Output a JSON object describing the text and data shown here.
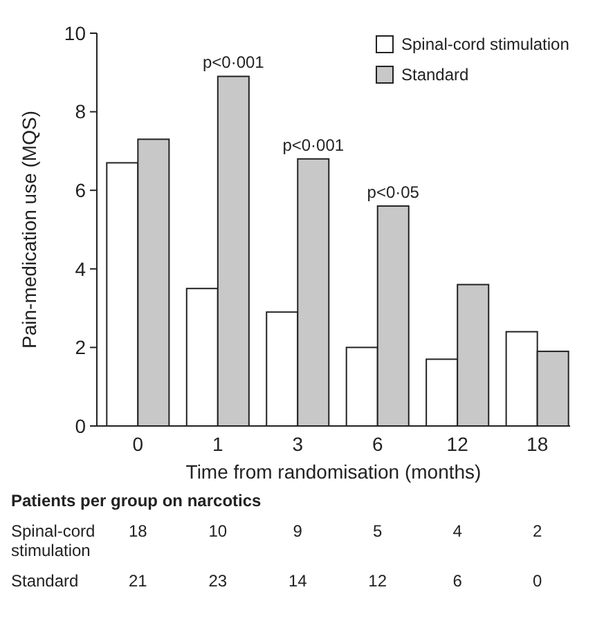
{
  "chart_data": {
    "type": "bar",
    "xlabel": "Time from randomisation (months)",
    "ylabel": "Pain-medication use (MQS)",
    "categories": [
      "0",
      "1",
      "3",
      "6",
      "12",
      "18"
    ],
    "series": [
      {
        "name": "Spinal-cord stimulation",
        "color": "#ffffff",
        "values": [
          6.7,
          3.5,
          2.9,
          2.0,
          1.7,
          2.4
        ]
      },
      {
        "name": "Standard",
        "color": "#c8c8c8",
        "values": [
          7.3,
          8.9,
          6.8,
          5.6,
          3.6,
          1.9
        ]
      }
    ],
    "ylim": [
      0,
      10
    ],
    "yticks": [
      0,
      2,
      4,
      6,
      8,
      10
    ],
    "grid": false,
    "legend": "top right",
    "annotations": [
      {
        "text": "p<0·001",
        "x": "1",
        "y": 8.9
      },
      {
        "text": "p<0·001",
        "x": "3",
        "y": 6.8
      },
      {
        "text": "p<0·05",
        "x": "6",
        "y": 5.6
      },
      "Patients per group on narcotics",
      "Spinal-cord stimulation",
      "18",
      "10",
      "9",
      "5",
      "4",
      "2",
      "Standard",
      "21",
      "23",
      "14",
      "12",
      "6",
      "0"
    ]
  }
}
